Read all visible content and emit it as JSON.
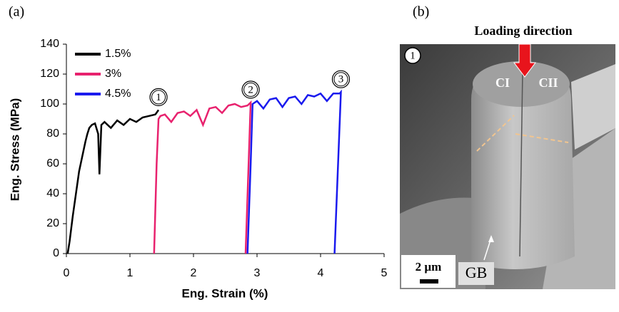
{
  "chart_data": {
    "type": "line",
    "panel_label": "(a)",
    "xlabel": "Eng. Strain (%)",
    "ylabel": "Eng. Stress (MPa)",
    "xlim": [
      0,
      5
    ],
    "xticks": [
      0,
      1,
      2,
      3,
      4,
      5
    ],
    "ylim": [
      0,
      140
    ],
    "yticks": [
      0,
      20,
      40,
      60,
      80,
      100,
      120,
      140
    ],
    "legend": "upper left",
    "annotations": [
      "1",
      "2",
      "3"
    ],
    "series": [
      {
        "name": "1.5%",
        "color": "#000000",
        "x": [
          0.02,
          0.05,
          0.1,
          0.15,
          0.2,
          0.25,
          0.3,
          0.33,
          0.36,
          0.4,
          0.45,
          0.5,
          0.52,
          0.55,
          0.6,
          0.7,
          0.8,
          0.9,
          1.0,
          1.1,
          1.2,
          1.3,
          1.4,
          1.45
        ],
        "values": [
          0,
          8,
          25,
          40,
          55,
          65,
          75,
          80,
          84,
          86,
          87,
          80,
          53,
          86,
          88,
          84,
          89,
          86,
          90,
          88,
          91,
          92,
          93,
          96
        ]
      },
      {
        "name": "3%",
        "color": "#e8226e",
        "x": [
          1.38,
          1.42,
          1.45,
          1.48,
          1.55,
          1.65,
          1.75,
          1.85,
          1.95,
          2.05,
          2.15,
          2.25,
          2.35,
          2.45,
          2.55,
          2.65,
          2.75,
          2.85,
          2.9,
          2.82
        ],
        "values": [
          0,
          60,
          90,
          92,
          93,
          88,
          94,
          95,
          92,
          96,
          86,
          97,
          98,
          94,
          99,
          100,
          98,
          99,
          101,
          0
        ]
      },
      {
        "name": "4.5%",
        "color": "#1a1aee",
        "x": [
          2.85,
          2.9,
          2.93,
          3.0,
          3.1,
          3.2,
          3.3,
          3.4,
          3.5,
          3.6,
          3.7,
          3.8,
          3.9,
          4.0,
          4.1,
          4.2,
          4.3,
          4.32,
          4.22
        ],
        "values": [
          0,
          60,
          100,
          102,
          97,
          103,
          104,
          98,
          104,
          105,
          100,
          106,
          105,
          107,
          102,
          107,
          107,
          108,
          0
        ]
      }
    ]
  },
  "image": {
    "panel_label": "(b)",
    "title": "Loading direction",
    "marker": "1",
    "grains": [
      "CI",
      "CII"
    ],
    "scale_bar": "2 µm",
    "boundary": "GB"
  }
}
